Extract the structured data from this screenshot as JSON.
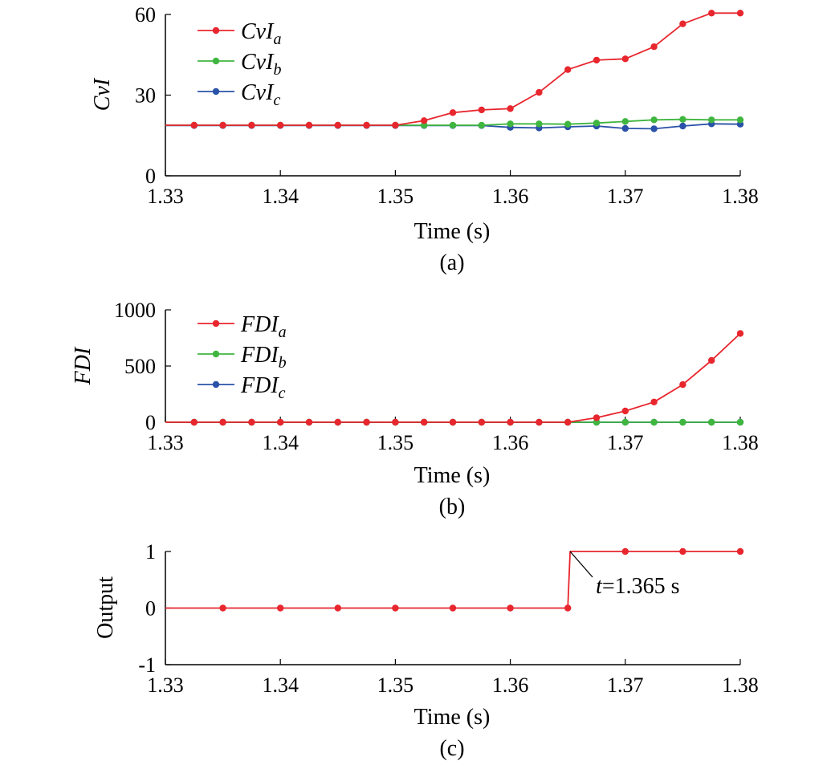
{
  "colors": {
    "a": "#e8262e",
    "b": "#3fb63f",
    "c": "#2a52a8",
    "axis": "#000000"
  },
  "chart_data": [
    {
      "type": "line",
      "caption": "(a)",
      "xlabel": "Time (s)",
      "ylabel": "CvI",
      "xlim": [
        1.33,
        1.38
      ],
      "ylim": [
        0,
        60
      ],
      "xticks": [
        "1.33",
        "1.34",
        "1.35",
        "1.36",
        "1.37",
        "1.38"
      ],
      "yticks": [
        "0",
        "30",
        "60"
      ],
      "legend_position": "top-left",
      "series": [
        {
          "name": "CvI",
          "sub": "a",
          "color_key": "a",
          "x": [
            1.33,
            1.3325,
            1.335,
            1.3375,
            1.34,
            1.3425,
            1.345,
            1.3475,
            1.35,
            1.3525,
            1.355,
            1.3575,
            1.36,
            1.3625,
            1.365,
            1.3675,
            1.37,
            1.3725,
            1.375,
            1.3775,
            1.38
          ],
          "y": [
            18.8,
            18.8,
            18.8,
            18.8,
            18.8,
            18.8,
            18.8,
            18.8,
            18.8,
            20.5,
            23.5,
            24.5,
            25.0,
            31.0,
            39.5,
            43.0,
            43.5,
            48.0,
            56.5,
            60.5,
            60.5
          ],
          "markers_from": 1
        },
        {
          "name": "CvI",
          "sub": "b",
          "color_key": "b",
          "x": [
            1.33,
            1.3325,
            1.335,
            1.3375,
            1.34,
            1.3425,
            1.345,
            1.3475,
            1.35,
            1.3525,
            1.355,
            1.3575,
            1.36,
            1.3625,
            1.365,
            1.3675,
            1.37,
            1.3725,
            1.375,
            1.3775,
            1.38
          ],
          "y": [
            18.8,
            18.8,
            18.8,
            18.8,
            18.8,
            18.8,
            18.8,
            18.8,
            18.8,
            18.8,
            18.8,
            18.8,
            19.3,
            19.3,
            19.2,
            19.6,
            20.2,
            20.8,
            21.0,
            20.8,
            20.8
          ],
          "markers_from": 1
        },
        {
          "name": "CvI",
          "sub": "c",
          "color_key": "c",
          "x": [
            1.33,
            1.3325,
            1.335,
            1.3375,
            1.34,
            1.3425,
            1.345,
            1.3475,
            1.35,
            1.3525,
            1.355,
            1.3575,
            1.36,
            1.3625,
            1.365,
            1.3675,
            1.37,
            1.3725,
            1.375,
            1.3775,
            1.38
          ],
          "y": [
            18.7,
            18.7,
            18.7,
            18.7,
            18.7,
            18.7,
            18.7,
            18.7,
            18.7,
            18.7,
            18.7,
            18.7,
            18.0,
            17.8,
            18.2,
            18.5,
            17.6,
            17.5,
            18.5,
            19.3,
            19.2
          ],
          "markers_from": 1
        }
      ]
    },
    {
      "type": "line",
      "caption": "(b)",
      "xlabel": "Time (s)",
      "ylabel": "FDI",
      "xlim": [
        1.33,
        1.38
      ],
      "ylim": [
        0,
        1000
      ],
      "xticks": [
        "1.33",
        "1.34",
        "1.35",
        "1.36",
        "1.37",
        "1.38"
      ],
      "yticks": [
        "0",
        "500",
        "1000"
      ],
      "legend_position": "top-left",
      "series": [
        {
          "name": "FDI",
          "sub": "a",
          "color_key": "a",
          "x": [
            1.33,
            1.3325,
            1.335,
            1.3375,
            1.34,
            1.3425,
            1.345,
            1.3475,
            1.35,
            1.3525,
            1.355,
            1.3575,
            1.36,
            1.3625,
            1.365,
            1.3675,
            1.37,
            1.3725,
            1.375,
            1.3775,
            1.38
          ],
          "y": [
            0,
            0,
            0,
            0,
            0,
            0,
            0,
            0,
            0,
            0,
            0,
            0,
            0,
            0,
            0,
            40,
            100,
            180,
            335,
            550,
            790
          ],
          "markers_from": 1
        },
        {
          "name": "FDI",
          "sub": "b",
          "color_key": "b",
          "x": [
            1.33,
            1.3325,
            1.335,
            1.3375,
            1.34,
            1.3425,
            1.345,
            1.3475,
            1.35,
            1.3525,
            1.355,
            1.3575,
            1.36,
            1.3625,
            1.365,
            1.3675,
            1.37,
            1.3725,
            1.375,
            1.3775,
            1.38
          ],
          "y": [
            0,
            0,
            0,
            0,
            0,
            0,
            0,
            0,
            0,
            0,
            0,
            0,
            0,
            0,
            0,
            0,
            0,
            0,
            0,
            0,
            0
          ],
          "markers_from": 1
        },
        {
          "name": "FDI",
          "sub": "c",
          "color_key": "c",
          "x": [
            1.33,
            1.3325,
            1.335,
            1.3375,
            1.34,
            1.3425,
            1.345,
            1.3475,
            1.35,
            1.3525,
            1.355,
            1.3575,
            1.36,
            1.3625,
            1.365,
            1.3675,
            1.37,
            1.3725,
            1.375,
            1.3775,
            1.38
          ],
          "y": [
            0,
            0,
            0,
            0,
            0,
            0,
            0,
            0,
            0,
            0,
            0,
            0,
            0,
            0,
            0,
            0,
            0,
            0,
            0,
            0,
            0
          ],
          "markers_from": 1
        }
      ]
    },
    {
      "type": "line",
      "caption": "(c)",
      "xlabel": "Time (s)",
      "ylabel": "Output",
      "xlim": [
        1.33,
        1.38
      ],
      "ylim": [
        -1,
        1
      ],
      "xticks": [
        "1.33",
        "1.34",
        "1.35",
        "1.36",
        "1.37",
        "1.38"
      ],
      "yticks": [
        "-1",
        "0",
        "1"
      ],
      "annotation": {
        "prefix": "t",
        "text": "=1.365 s",
        "x": 1.3652,
        "y": 1.0
      },
      "series": [
        {
          "color_key": "a",
          "x": [
            1.33,
            1.335,
            1.34,
            1.345,
            1.35,
            1.355,
            1.36,
            1.365,
            1.3652,
            1.37,
            1.375,
            1.38
          ],
          "y": [
            0,
            0,
            0,
            0,
            0,
            0,
            0,
            0,
            1,
            1,
            1,
            1
          ],
          "marker_idx": [
            1,
            2,
            3,
            4,
            5,
            6,
            7,
            9,
            10,
            11
          ]
        }
      ]
    }
  ]
}
